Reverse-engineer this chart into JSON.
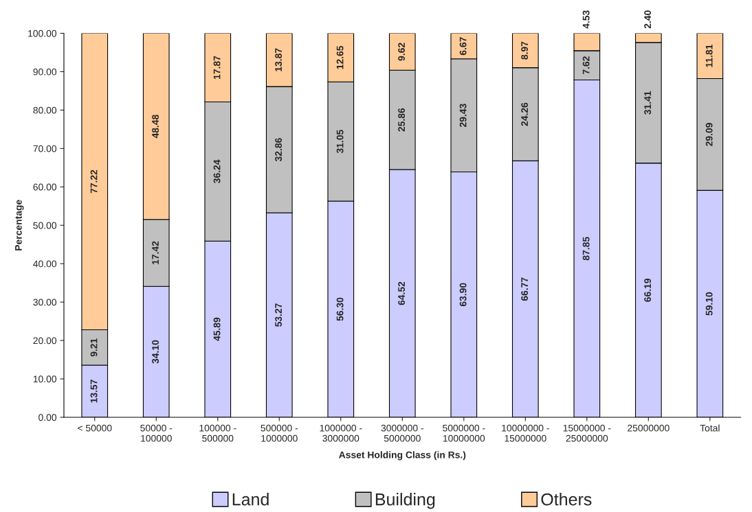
{
  "chart_data": {
    "type": "bar",
    "stacked": true,
    "xlabel": "Asset Holding Class (in Rs.)",
    "ylabel": "Percentage",
    "categories": [
      "< 50000",
      "50000 -\n100000",
      "100000 -\n500000",
      "500000 -\n1000000",
      "1000000 -\n3000000",
      "3000000 -\n5000000",
      "5000000 -\n10000000",
      "10000000 -\n15000000",
      "15000000 -\n25000000",
      "25000000",
      "Total"
    ],
    "series": [
      {
        "name": "Land",
        "color": "#ccccff",
        "values": [
          13.57,
          34.1,
          45.89,
          53.27,
          56.3,
          64.52,
          63.9,
          66.77,
          87.85,
          66.19,
          59.1
        ],
        "value_labels": [
          "13.57",
          "34.10",
          "45.89",
          "53.27",
          "56.30",
          "64.52",
          "63.90",
          "66.77",
          "87.85",
          "66.19",
          "59.10"
        ]
      },
      {
        "name": "Building",
        "color": "#c0c0c0",
        "values": [
          9.21,
          17.42,
          36.24,
          32.86,
          31.05,
          25.86,
          29.43,
          24.26,
          7.62,
          31.41,
          29.09
        ],
        "value_labels": [
          "9.21",
          "17.42",
          "36.24",
          "32.86",
          "31.05",
          "25.86",
          "29.43",
          "24.26",
          "7.62",
          "31.41",
          "29.09"
        ]
      },
      {
        "name": "Others",
        "color": "#ffcc99",
        "values": [
          77.22,
          48.48,
          17.87,
          13.87,
          12.65,
          9.62,
          6.67,
          8.97,
          4.53,
          2.4,
          11.81
        ],
        "value_labels": [
          "77.22",
          "48.48",
          "17.87",
          "13.87",
          "12.65",
          "9.62",
          "6.67",
          "8.97",
          "4.53",
          "2.40",
          "11.81"
        ]
      }
    ],
    "ylim": [
      0,
      100
    ],
    "yticks": [
      {
        "value": 0,
        "label": "0.00"
      },
      {
        "value": 10,
        "label": "10.00"
      },
      {
        "value": 20,
        "label": "20.00"
      },
      {
        "value": 30,
        "label": "30.00"
      },
      {
        "value": 40,
        "label": "40.00"
      },
      {
        "value": 50,
        "label": "50.00"
      },
      {
        "value": 60,
        "label": "60.00"
      },
      {
        "value": 70,
        "label": "70.00"
      },
      {
        "value": 80,
        "label": "80.00"
      },
      {
        "value": 90,
        "label": "90.00"
      },
      {
        "value": 100,
        "label": "100.00"
      }
    ],
    "grid": false,
    "legend": "bottom"
  }
}
